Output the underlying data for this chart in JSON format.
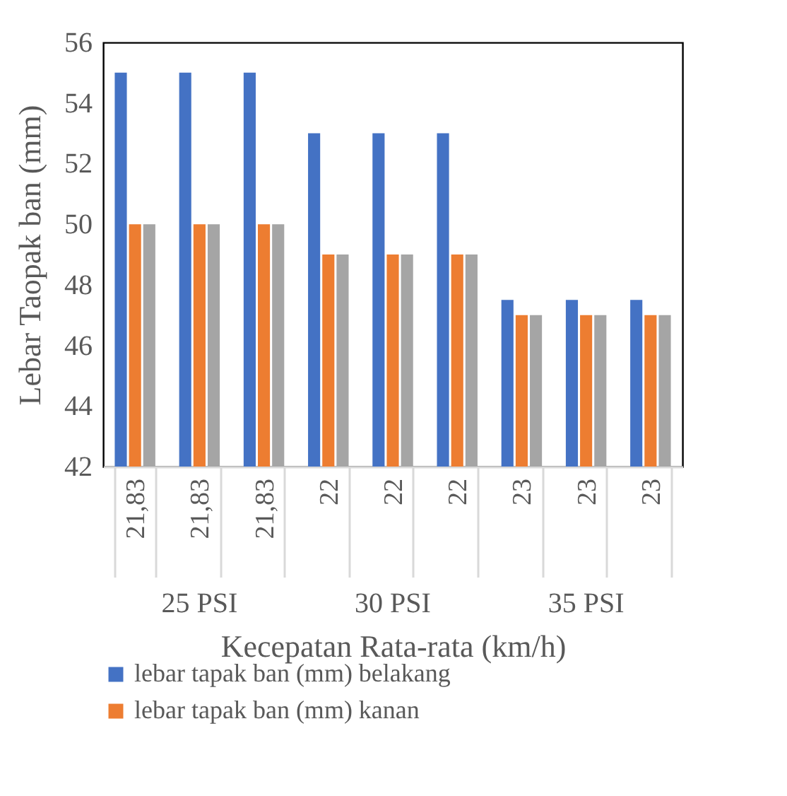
{
  "chart_data": {
    "type": "bar",
    "xlabel": "Kecepatan Rata-rata (km/h)",
    "ylabel": "Lebar Taopak ban (mm)",
    "categories": [
      "21,83",
      "21,83",
      "21,83",
      "22",
      "22",
      "22",
      "23",
      "23",
      "23"
    ],
    "annotations": [
      "25 PSI",
      "30 PSI",
      "35 PSI"
    ],
    "series": [
      {
        "name": "lebar tapak ban (mm) belakang",
        "color": "#4472c4",
        "values": [
          55,
          55,
          55,
          53,
          53,
          53,
          47.5,
          47.5,
          47.5
        ]
      },
      {
        "name": "lebar tapak ban (mm) kanan",
        "color": "#ed7d31",
        "values": [
          50,
          50,
          50,
          49,
          49,
          49,
          47,
          47,
          47
        ]
      },
      {
        "color": "#a5a5a5",
        "values": [
          50,
          50,
          50,
          49,
          49,
          49,
          47,
          47,
          47
        ]
      }
    ],
    "ylim": [
      42,
      56
    ],
    "yticks": [
      42,
      44,
      46,
      48,
      50,
      52,
      54,
      56
    ],
    "grid": false,
    "legend": "bottom"
  }
}
